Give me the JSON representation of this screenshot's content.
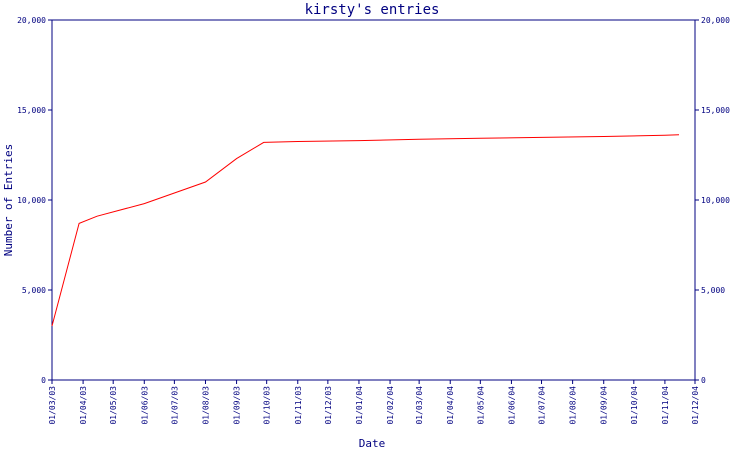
{
  "chart_data": {
    "type": "line",
    "title": "kirsty's entries",
    "xlabel": "Date",
    "ylabel": "Number of Entries",
    "ylim": [
      0,
      20000
    ],
    "yticks": [
      {
        "value": 0,
        "label": "0"
      },
      {
        "value": 5000,
        "label": "5,000"
      },
      {
        "value": 10000,
        "label": "10,000"
      },
      {
        "value": 15000,
        "label": "15,000"
      },
      {
        "value": 20000,
        "label": "20,000"
      }
    ],
    "xticks": [
      "01/03/03",
      "01/04/03",
      "01/05/03",
      "01/06/03",
      "01/07/03",
      "01/08/03",
      "01/09/03",
      "01/10/03",
      "01/11/03",
      "01/12/03",
      "01/01/04",
      "01/02/04",
      "01/03/04",
      "01/04/04",
      "01/05/04",
      "01/06/04",
      "01/07/04",
      "01/08/04",
      "01/09/04",
      "01/10/04",
      "01/11/04",
      "01/12/04"
    ],
    "series": [
      {
        "color": "#ff0000",
        "points": [
          {
            "x": "2003-03-01",
            "y": 3000
          },
          {
            "x": "2003-03-28",
            "y": 8700
          },
          {
            "x": "2003-04-15",
            "y": 9100
          },
          {
            "x": "2003-06-01",
            "y": 9800
          },
          {
            "x": "2003-08-01",
            "y": 11000
          },
          {
            "x": "2003-09-01",
            "y": 12300
          },
          {
            "x": "2003-09-28",
            "y": 13200
          },
          {
            "x": "2003-11-01",
            "y": 13250
          },
          {
            "x": "2004-01-01",
            "y": 13300
          },
          {
            "x": "2004-03-01",
            "y": 13380
          },
          {
            "x": "2004-05-01",
            "y": 13430
          },
          {
            "x": "2004-07-01",
            "y": 13480
          },
          {
            "x": "2004-09-01",
            "y": 13530
          },
          {
            "x": "2004-11-01",
            "y": 13600
          },
          {
            "x": "2004-11-15",
            "y": 13620
          }
        ]
      }
    ],
    "grid": false,
    "colors": {
      "axis": "#000080",
      "line": "#ff0000"
    }
  }
}
